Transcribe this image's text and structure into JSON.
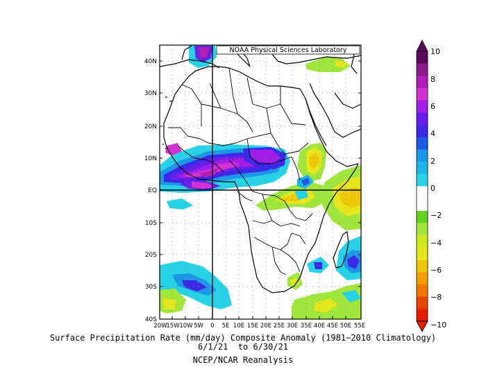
{
  "header": {
    "source_label": "NOAA Physical Sciences Laboratory"
  },
  "map": {
    "lat_labels": [
      "40N",
      "30N",
      "20N",
      "10N",
      "EQ",
      "10S",
      "20S",
      "30S",
      "40S"
    ],
    "lon_labels": [
      "20W",
      "15W",
      "10W",
      "5W",
      "0",
      "5E",
      "10E",
      "15E",
      "20E",
      "25E",
      "30E",
      "35E",
      "40E",
      "45E",
      "50E",
      "55E"
    ]
  },
  "colorbar": {
    "tick_labels": [
      "10",
      "8",
      "6",
      "4",
      "2",
      "0",
      "−2",
      "−4",
      "−6",
      "−8",
      "−10"
    ],
    "colors": [
      "#5a0a5a",
      "#8a1a8a",
      "#b01eb8",
      "#d232d2",
      "#a01ee6",
      "#6a1ee8",
      "#3c28e6",
      "#1e5ae6",
      "#1e96e6",
      "#1eb4e6",
      "#28d2e6",
      "#ffffff",
      "#ffffff",
      "#64d21e",
      "#a0e63c",
      "#d2e61e",
      "#e6e61e",
      "#f0c80a",
      "#f5a000",
      "#f07800",
      "#e64600",
      "#e61e00"
    ],
    "top_color": "#5a0a5a",
    "bottom_color": "#e61e00"
  },
  "caption": {
    "line1": "Surface Precipitation Rate (mm/day) Composite Anomaly (1981−2010 Climatology)",
    "line2": "6/1/21  to 6/30/21",
    "line3": "NCEP/NCAR Reanalysis"
  }
}
